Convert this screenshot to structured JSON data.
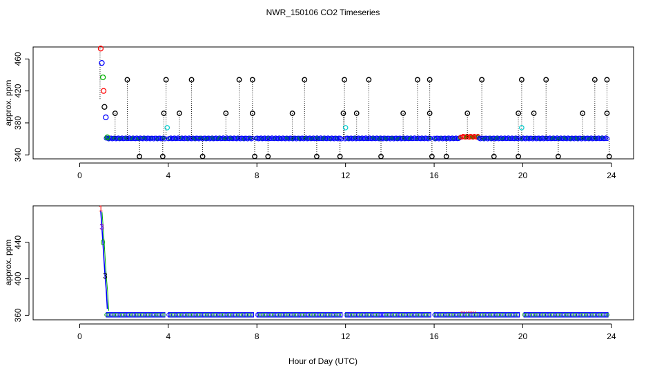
{
  "title": "NWR_150106  CO2 Timeseries",
  "xlabel": "Hour of Day (UTC)",
  "colors": {
    "red": "#ff0000",
    "blue": "#0000ff",
    "green": "#00b000",
    "cyan": "#00cccc",
    "black": "#000000",
    "purple": "#8800aa"
  },
  "chart_data": [
    {
      "type": "scatter",
      "panel": "top",
      "ylabel": "approx. ppm",
      "xlim": [
        -2.1,
        25
      ],
      "ylim": [
        335,
        475
      ],
      "xticks": [
        0,
        4,
        8,
        12,
        16,
        20,
        24
      ],
      "yticks": [
        340,
        380,
        420,
        460
      ],
      "baseline": {
        "name": "main",
        "color": "#0000ff",
        "x_start": 1.2,
        "x_end": 23.85,
        "y": 360,
        "gaps": [
          [
            3.88,
            4.0
          ],
          [
            7.85,
            7.95
          ],
          [
            11.85,
            11.95
          ],
          [
            15.85,
            15.95
          ],
          [
            19.85,
            19.95
          ]
        ]
      },
      "bump": {
        "x_start": 17.2,
        "x_end": 18.0,
        "y": 362,
        "color": "#ff0000"
      },
      "spikes_high": [
        2.15,
        3.9,
        5.05,
        7.2,
        7.8,
        10.15,
        11.95,
        13.05,
        15.25,
        15.8,
        18.15,
        19.95,
        21.05,
        23.25,
        23.8
      ],
      "spikes_mid": [
        1.6,
        3.8,
        4.5,
        6.6,
        7.8,
        9.6,
        11.9,
        12.5,
        14.6,
        15.8,
        17.5,
        19.8,
        20.5,
        22.7,
        23.8
      ],
      "spikes_low": [
        2.7,
        3.75,
        5.55,
        7.9,
        8.5,
        10.7,
        11.75,
        13.6,
        15.9,
        16.55,
        18.7,
        19.8,
        21.6,
        23.9
      ],
      "spike_high_y": 434,
      "spike_mid_y": 392,
      "spike_low_y": 338,
      "cyan_points": [
        {
          "x": 3.95,
          "y": 374
        },
        {
          "x": 12.0,
          "y": 374
        },
        {
          "x": 19.95,
          "y": 374
        }
      ],
      "early_points": [
        {
          "x": 0.95,
          "y": 473,
          "color": "#ff0000"
        },
        {
          "x": 1.0,
          "y": 455,
          "color": "#0000ff"
        },
        {
          "x": 1.05,
          "y": 437,
          "color": "#00b000"
        },
        {
          "x": 1.08,
          "y": 420,
          "color": "#ff0000"
        },
        {
          "x": 1.12,
          "y": 400,
          "color": "#000000"
        },
        {
          "x": 1.18,
          "y": 387,
          "color": "#0000ff"
        },
        {
          "x": 1.25,
          "y": 362,
          "color": "#00b000"
        }
      ]
    },
    {
      "type": "line",
      "panel": "bottom",
      "ylabel": "approx. ppm",
      "xlim": [
        -2.1,
        25
      ],
      "ylim": [
        355,
        480
      ],
      "xticks": [
        0,
        4,
        8,
        12,
        16,
        20,
        24
      ],
      "yticks": [
        360,
        400,
        440
      ],
      "series_x": [
        0.95,
        1.0,
        1.05,
        1.1,
        1.15,
        1.2,
        1.25
      ],
      "series_y": [
        475,
        458,
        440,
        420,
        402,
        388,
        367
      ],
      "drop_labels": [
        {
          "text": "1",
          "x": 0.95,
          "y": 477,
          "color": "#ff0000"
        },
        {
          "text": "3",
          "x": 1.0,
          "y": 457,
          "color": "#8800aa"
        },
        {
          "text": "0",
          "x": 1.05,
          "y": 440,
          "color": "#00b000"
        },
        {
          "text": "3",
          "x": 1.15,
          "y": 403,
          "color": "#000000"
        }
      ],
      "segments": [
        [
          1.2,
          3.85
        ],
        [
          4.0,
          7.85
        ],
        [
          8.0,
          11.85
        ],
        [
          12.0,
          15.85
        ],
        [
          16.0,
          19.85
        ],
        [
          20.05,
          23.85
        ]
      ],
      "segment_y": 360,
      "bump": {
        "x_start": 17.2,
        "x_end": 17.9,
        "y": 362,
        "color": "#ff0000"
      }
    }
  ]
}
